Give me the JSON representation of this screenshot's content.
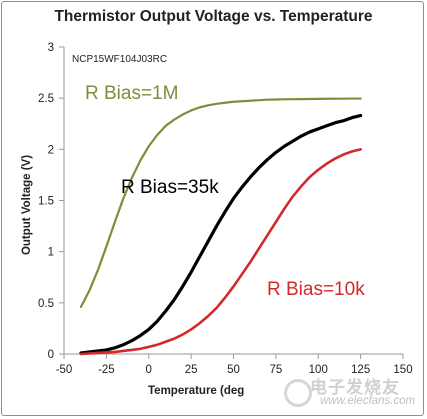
{
  "chart_data": {
    "type": "line",
    "title": "Thermistor Output Voltage vs. Temperature",
    "subtitle": "NCP15WF104J03RC",
    "xlabel": "Temperature (deg",
    "ylabel": "Output Voltage (V)",
    "xlim": [
      -50,
      150
    ],
    "ylim": [
      0,
      3
    ],
    "xticks": [
      "-50",
      "-25",
      "0",
      "25",
      "50",
      "75",
      "100",
      "125",
      "150"
    ],
    "yticks": [
      "0",
      "0.5",
      "1",
      "1.5",
      "2",
      "2.5",
      "3"
    ],
    "grid": false,
    "series": [
      {
        "name": "R Bias=1M",
        "color": "#7b8f3a",
        "x": [
          -40,
          -35,
          -30,
          -25,
          -20,
          -15,
          -10,
          -5,
          0,
          5,
          10,
          15,
          20,
          25,
          30,
          35,
          40,
          45,
          50,
          55,
          60,
          65,
          70,
          75,
          80,
          85,
          90,
          95,
          100,
          105,
          110,
          115,
          120,
          125
        ],
        "y": [
          0.46,
          0.62,
          0.82,
          1.05,
          1.29,
          1.52,
          1.72,
          1.89,
          2.03,
          2.14,
          2.23,
          2.29,
          2.34,
          2.38,
          2.41,
          2.43,
          2.445,
          2.455,
          2.465,
          2.47,
          2.475,
          2.48,
          2.485,
          2.487,
          2.489,
          2.49,
          2.491,
          2.492,
          2.493,
          2.494,
          2.495,
          2.495,
          2.496,
          2.496
        ]
      },
      {
        "name": "R Bias=35k",
        "color": "#000000",
        "x": [
          -40,
          -35,
          -30,
          -25,
          -20,
          -15,
          -10,
          -5,
          0,
          5,
          10,
          15,
          20,
          25,
          30,
          35,
          40,
          45,
          50,
          55,
          60,
          65,
          70,
          75,
          80,
          85,
          90,
          95,
          100,
          105,
          110,
          115,
          120,
          125
        ],
        "y": [
          0.01,
          0.02,
          0.03,
          0.04,
          0.06,
          0.09,
          0.13,
          0.18,
          0.24,
          0.32,
          0.42,
          0.53,
          0.66,
          0.8,
          0.95,
          1.1,
          1.25,
          1.39,
          1.52,
          1.63,
          1.73,
          1.82,
          1.9,
          1.97,
          2.03,
          2.08,
          2.13,
          2.17,
          2.2,
          2.23,
          2.26,
          2.28,
          2.31,
          2.33
        ]
      },
      {
        "name": "R Bias=10k",
        "color": "#d22a2a",
        "x": [
          -40,
          -35,
          -30,
          -25,
          -20,
          -15,
          -10,
          -5,
          0,
          5,
          10,
          15,
          20,
          25,
          30,
          35,
          40,
          45,
          50,
          55,
          60,
          65,
          70,
          75,
          80,
          85,
          90,
          95,
          100,
          105,
          110,
          115,
          120,
          125
        ],
        "y": [
          0.0,
          0.005,
          0.01,
          0.015,
          0.02,
          0.03,
          0.04,
          0.05,
          0.07,
          0.09,
          0.12,
          0.15,
          0.19,
          0.24,
          0.3,
          0.37,
          0.45,
          0.55,
          0.66,
          0.78,
          0.9,
          1.03,
          1.16,
          1.29,
          1.42,
          1.54,
          1.64,
          1.73,
          1.8,
          1.86,
          1.91,
          1.95,
          1.98,
          2.0
        ]
      }
    ],
    "legend": "inline labels"
  },
  "watermark": {
    "cn": "电子发烧友",
    "url": "www.elecfans.com"
  }
}
